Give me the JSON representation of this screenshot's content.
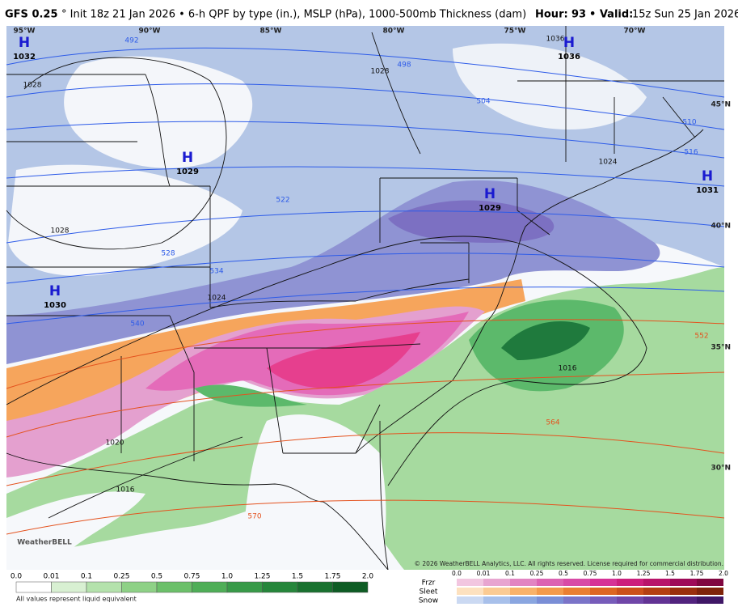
{
  "header": {
    "model": "GFS 0.25",
    "description": "° Init 18z 21 Jan 2026 • 6-h QPF by type (in.), MSLP (hPa), 1000-500mb Thickness (dam)",
    "hour_label": "Hour:",
    "hour": "93",
    "valid_label": "• Valid:",
    "valid": "15z Sun 25 Jan 2026"
  },
  "map": {
    "longitudes": [
      "95°W",
      "90°W",
      "85°W",
      "80°W",
      "75°W",
      "70°W"
    ],
    "latitudes": [
      "45°N",
      "40°N",
      "35°N",
      "30°N"
    ],
    "pressure_centers": [
      {
        "symbol": "H",
        "value": "1032"
      },
      {
        "symbol": "H",
        "value": "1036"
      },
      {
        "symbol": "H",
        "value": "1029"
      },
      {
        "symbol": "H",
        "value": "1029"
      },
      {
        "symbol": "H",
        "value": "1031"
      },
      {
        "symbol": "H",
        "value": "1030"
      }
    ],
    "isobar_labels": [
      "1036",
      "1028",
      "1028",
      "1024",
      "1028",
      "1024",
      "1020",
      "1016",
      "1016"
    ],
    "thickness_labels": [
      "492",
      "498",
      "504",
      "510",
      "516",
      "522",
      "528",
      "534",
      "540",
      "552",
      "564",
      "570"
    ],
    "logo": "WeatherBELL",
    "copyright": "© 2026 WeatherBELL Analytics, LLC. All rights reserved. License required for commercial distribution."
  },
  "legend": {
    "rain_ticks": [
      "0.0",
      "0.01",
      "0.1",
      "0.25",
      "0.5",
      "0.75",
      "1.0",
      "1.25",
      "1.5",
      "1.75",
      "2.0"
    ],
    "note": "All values represent liquid equivalent",
    "types": [
      "Frzr",
      "Sleet",
      "Snow"
    ],
    "type_ticks": [
      "0.0",
      "0.01",
      "0.1",
      "0.25",
      "0.5",
      "0.75",
      "1.0",
      "1.25",
      "1.5",
      "1.75",
      "2.0"
    ]
  }
}
